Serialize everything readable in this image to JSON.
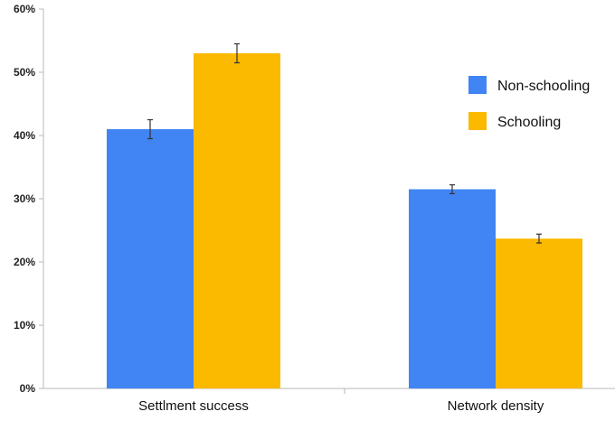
{
  "chart_data": {
    "type": "bar",
    "categories": [
      "Settlment success",
      "Network density"
    ],
    "series": [
      {
        "name": "Non-schooling",
        "values": [
          41,
          31.5
        ],
        "error": [
          1.5,
          0.7
        ],
        "color": "#4184f3"
      },
      {
        "name": "Schooling",
        "values": [
          53,
          23.7
        ],
        "error": [
          1.5,
          0.7
        ],
        "color": "#fbb900"
      }
    ],
    "title": "",
    "xlabel": "",
    "ylabel": "",
    "ylim": [
      0,
      60
    ],
    "yticks": [
      0,
      10,
      20,
      30,
      40,
      50,
      60
    ],
    "ytick_labels": [
      "0%",
      "10%",
      "20%",
      "30%",
      "40%",
      "50%",
      "60%"
    ],
    "grid": false,
    "legend": "right"
  }
}
